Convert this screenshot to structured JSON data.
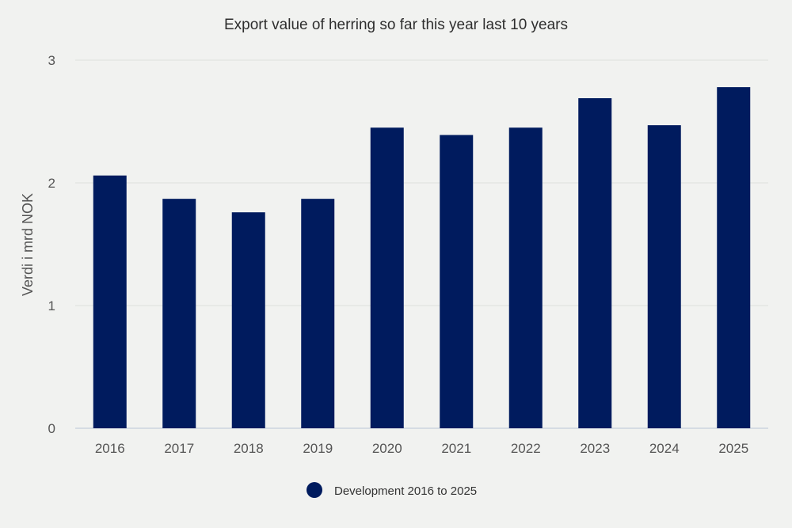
{
  "chart_data": {
    "type": "bar",
    "title": "Export value of herring so far this year last 10 years",
    "xlabel": "",
    "ylabel": "Verdi i mrd NOK",
    "categories": [
      "2016",
      "2017",
      "2018",
      "2019",
      "2020",
      "2021",
      "2022",
      "2023",
      "2024",
      "2025"
    ],
    "series": [
      {
        "name": "Development 2016 to 2025",
        "values": [
          2.06,
          1.87,
          1.76,
          1.87,
          2.45,
          2.39,
          2.45,
          2.69,
          2.47,
          2.78
        ],
        "color": "#001b5e"
      }
    ],
    "ylim": [
      0,
      3
    ],
    "yticks": [
      "0",
      "1",
      "2",
      "3"
    ],
    "grid": true,
    "legend_position": "bottom"
  }
}
